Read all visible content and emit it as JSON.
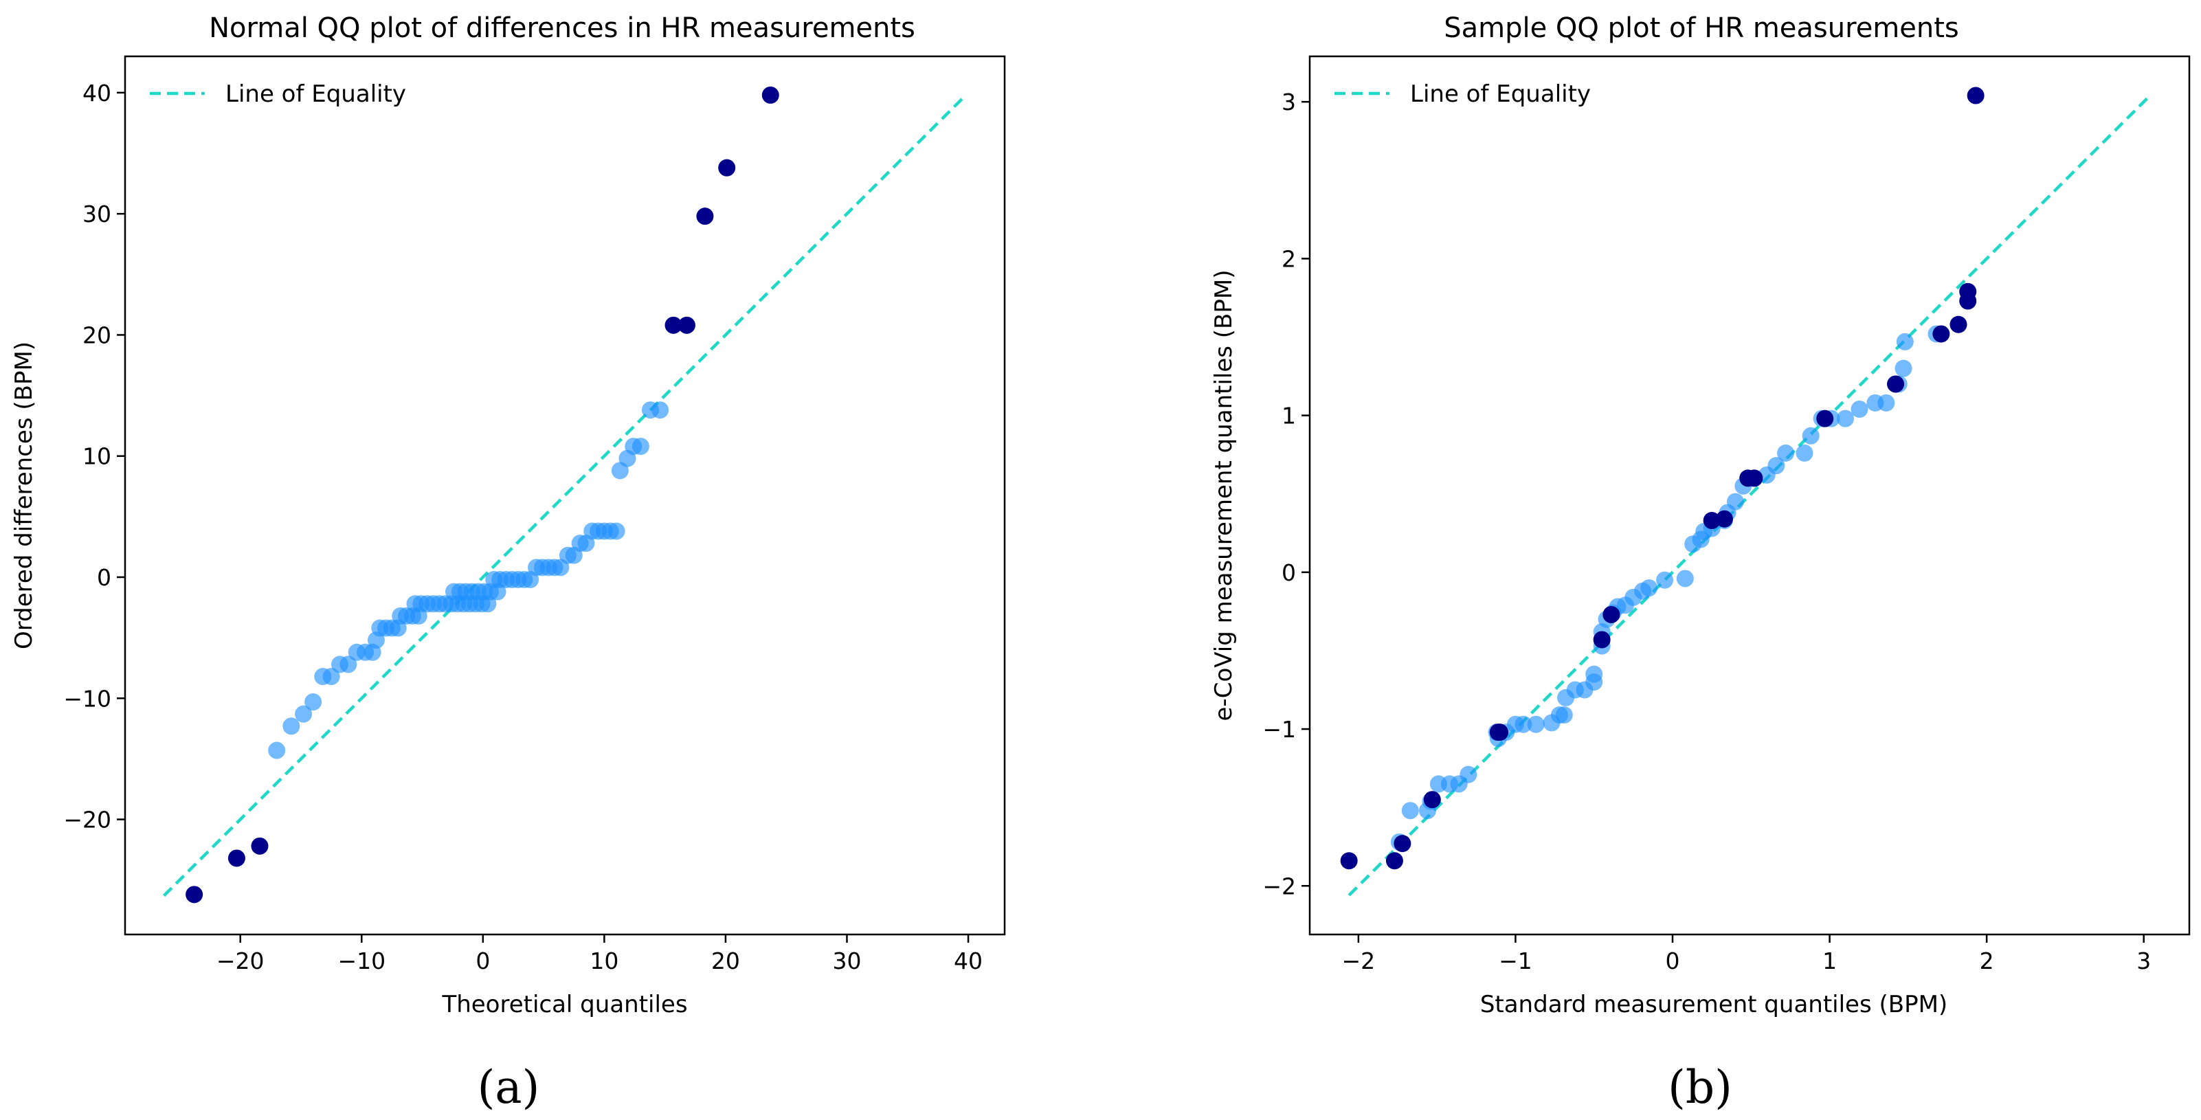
{
  "chart_data": [
    {
      "type": "scatter",
      "panel_label": "(a)",
      "title": "Normal QQ plot of differences in HR measurements",
      "xlabel": "Theoretical quantiles",
      "ylabel": "Ordered differences (BPM)",
      "xlim": [
        -29.5,
        43
      ],
      "ylim": [
        -29.5,
        43
      ],
      "xticks": [
        -20,
        -10,
        0,
        10,
        20,
        30,
        40
      ],
      "yticks": [
        -20,
        -10,
        0,
        10,
        20,
        30,
        40
      ],
      "xtick_labels": [
        "−20",
        "−10",
        "0",
        "10",
        "20",
        "30",
        "40"
      ],
      "ytick_labels": [
        "−20",
        "−10",
        "0",
        "10",
        "20",
        "30",
        "40"
      ],
      "legend": {
        "label": "Line of Equality",
        "placement": "upper-left"
      },
      "reference_line": {
        "from": [
          -26.3,
          -26.3
        ],
        "to": [
          39.8,
          39.8
        ]
      },
      "colors": {
        "inlier": "#1e90ff",
        "outlier": "#00008b",
        "line": "#20d8c8"
      },
      "series": [
        {
          "name": "inliers",
          "points": [
            [
              -17.0,
              -14.3
            ],
            [
              -15.8,
              -12.3
            ],
            [
              -14.8,
              -11.3
            ],
            [
              -14.0,
              -10.3
            ],
            [
              -13.2,
              -8.2
            ],
            [
              -12.5,
              -8.2
            ],
            [
              -11.8,
              -7.2
            ],
            [
              -11.1,
              -7.2
            ],
            [
              -10.4,
              -6.2
            ],
            [
              -9.7,
              -6.2
            ],
            [
              -9.1,
              -6.2
            ],
            [
              -8.8,
              -5.2
            ],
            [
              -8.5,
              -4.2
            ],
            [
              -8.0,
              -4.2
            ],
            [
              -7.5,
              -4.2
            ],
            [
              -7.0,
              -4.2
            ],
            [
              -6.8,
              -3.2
            ],
            [
              -6.3,
              -3.2
            ],
            [
              -5.8,
              -3.2
            ],
            [
              -5.3,
              -3.2
            ],
            [
              -5.6,
              -2.2
            ],
            [
              -5.1,
              -2.2
            ],
            [
              -4.6,
              -2.2
            ],
            [
              -4.1,
              -2.2
            ],
            [
              -3.6,
              -2.2
            ],
            [
              -3.1,
              -2.2
            ],
            [
              -2.6,
              -2.2
            ],
            [
              -2.1,
              -2.2
            ],
            [
              -1.6,
              -2.2
            ],
            [
              -1.1,
              -2.2
            ],
            [
              -0.6,
              -2.2
            ],
            [
              -0.1,
              -2.2
            ],
            [
              0.4,
              -2.2
            ],
            [
              -2.4,
              -1.2
            ],
            [
              -1.9,
              -1.2
            ],
            [
              -1.4,
              -1.2
            ],
            [
              -0.9,
              -1.2
            ],
            [
              -0.4,
              -1.2
            ],
            [
              0.1,
              -1.2
            ],
            [
              0.6,
              -1.2
            ],
            [
              1.2,
              -1.2
            ],
            [
              0.9,
              -0.2
            ],
            [
              1.4,
              -0.2
            ],
            [
              1.9,
              -0.2
            ],
            [
              2.4,
              -0.2
            ],
            [
              2.9,
              -0.2
            ],
            [
              3.4,
              -0.2
            ],
            [
              3.9,
              -0.2
            ],
            [
              4.4,
              0.8
            ],
            [
              4.9,
              0.8
            ],
            [
              5.4,
              0.8
            ],
            [
              5.9,
              0.8
            ],
            [
              6.4,
              0.8
            ],
            [
              7.0,
              1.8
            ],
            [
              7.5,
              1.8
            ],
            [
              8.0,
              2.8
            ],
            [
              8.5,
              2.8
            ],
            [
              9.0,
              3.8
            ],
            [
              9.5,
              3.8
            ],
            [
              10.0,
              3.8
            ],
            [
              10.5,
              3.8
            ],
            [
              11.0,
              3.8
            ],
            [
              11.3,
              8.8
            ],
            [
              11.9,
              9.8
            ],
            [
              12.4,
              10.8
            ],
            [
              13.0,
              10.8
            ],
            [
              13.8,
              13.8
            ],
            [
              14.6,
              13.8
            ]
          ]
        },
        {
          "name": "outliers",
          "points": [
            [
              -23.8,
              -26.2
            ],
            [
              -20.3,
              -23.2
            ],
            [
              -18.4,
              -22.2
            ],
            [
              15.7,
              20.8
            ],
            [
              16.8,
              20.8
            ],
            [
              18.3,
              29.8
            ],
            [
              20.1,
              33.8
            ],
            [
              23.7,
              39.8
            ]
          ]
        }
      ]
    },
    {
      "type": "scatter",
      "panel_label": "(b)",
      "title": "Sample QQ plot of HR measurements",
      "xlabel": "Standard measurement quantiles (BPM)",
      "ylabel": "e-CoVig measurement quantiles (BPM)",
      "xlim": [
        -2.31,
        3.29
      ],
      "ylim": [
        -2.31,
        3.29
      ],
      "xticks": [
        -2,
        -1,
        0,
        1,
        2,
        3
      ],
      "yticks": [
        -2,
        -1,
        0,
        1,
        2,
        3
      ],
      "xtick_labels": [
        "−2",
        "−1",
        "0",
        "1",
        "2",
        "3"
      ],
      "ytick_labels": [
        "−2",
        "−1",
        "0",
        "1",
        "2",
        "3"
      ],
      "legend": {
        "label": "Line of Equality",
        "placement": "upper-left"
      },
      "reference_line": {
        "from": [
          -2.06,
          -2.06
        ],
        "to": [
          3.04,
          3.04
        ]
      },
      "colors": {
        "inlier": "#1e90ff",
        "outlier": "#00008b",
        "line": "#20d8c8"
      },
      "series": [
        {
          "name": "inliers",
          "points": [
            [
              -1.74,
              -1.72
            ],
            [
              -1.67,
              -1.52
            ],
            [
              -1.56,
              -1.52
            ],
            [
              -1.54,
              -1.46
            ],
            [
              -1.53,
              -1.45
            ],
            [
              -1.49,
              -1.35
            ],
            [
              -1.42,
              -1.35
            ],
            [
              -1.36,
              -1.35
            ],
            [
              -1.3,
              -1.29
            ],
            [
              -1.11,
              -1.06
            ],
            [
              -1.12,
              -1.02
            ],
            [
              -1.06,
              -1.02
            ],
            [
              -1.0,
              -0.97
            ],
            [
              -0.95,
              -0.97
            ],
            [
              -0.87,
              -0.97
            ],
            [
              -0.77,
              -0.96
            ],
            [
              -0.72,
              -0.91
            ],
            [
              -0.69,
              -0.91
            ],
            [
              -0.68,
              -0.8
            ],
            [
              -0.62,
              -0.75
            ],
            [
              -0.56,
              -0.75
            ],
            [
              -0.5,
              -0.7
            ],
            [
              -0.5,
              -0.65
            ],
            [
              -0.45,
              -0.47
            ],
            [
              -0.45,
              -0.38
            ],
            [
              -0.42,
              -0.3
            ],
            [
              -0.38,
              -0.26
            ],
            [
              -0.35,
              -0.22
            ],
            [
              -0.3,
              -0.21
            ],
            [
              -0.25,
              -0.16
            ],
            [
              -0.19,
              -0.12
            ],
            [
              -0.15,
              -0.1
            ],
            [
              -0.05,
              -0.05
            ],
            [
              0.08,
              -0.04
            ],
            [
              0.13,
              0.18
            ],
            [
              0.18,
              0.21
            ],
            [
              0.2,
              0.26
            ],
            [
              0.25,
              0.28
            ],
            [
              0.33,
              0.33
            ],
            [
              0.35,
              0.38
            ],
            [
              0.4,
              0.45
            ],
            [
              0.45,
              0.55
            ],
            [
              0.52,
              0.6
            ],
            [
              0.6,
              0.62
            ],
            [
              0.66,
              0.68
            ],
            [
              0.72,
              0.76
            ],
            [
              0.84,
              0.76
            ],
            [
              0.88,
              0.87
            ],
            [
              0.95,
              0.98
            ],
            [
              1.01,
              0.98
            ],
            [
              1.1,
              0.98
            ],
            [
              1.19,
              1.04
            ],
            [
              1.29,
              1.08
            ],
            [
              1.36,
              1.08
            ],
            [
              1.42,
              1.2
            ],
            [
              1.44,
              1.2
            ],
            [
              1.47,
              1.3
            ],
            [
              1.48,
              1.47
            ],
            [
              1.68,
              1.52
            ],
            [
              1.82,
              1.58
            ]
          ]
        },
        {
          "name": "outliers",
          "points": [
            [
              -2.06,
              -1.84
            ],
            [
              -1.77,
              -1.84
            ],
            [
              -1.72,
              -1.73
            ],
            [
              -1.53,
              -1.45
            ],
            [
              -1.11,
              -1.02
            ],
            [
              -1.1,
              -1.02
            ],
            [
              -0.45,
              -0.43
            ],
            [
              -0.39,
              -0.27
            ],
            [
              0.25,
              0.33
            ],
            [
              0.33,
              0.34
            ],
            [
              0.48,
              0.6
            ],
            [
              0.52,
              0.6
            ],
            [
              0.97,
              0.98
            ],
            [
              1.42,
              1.2
            ],
            [
              1.71,
              1.52
            ],
            [
              1.82,
              1.58
            ],
            [
              1.88,
              1.73
            ],
            [
              1.88,
              1.79
            ],
            [
              1.93,
              3.04
            ]
          ]
        }
      ]
    }
  ]
}
